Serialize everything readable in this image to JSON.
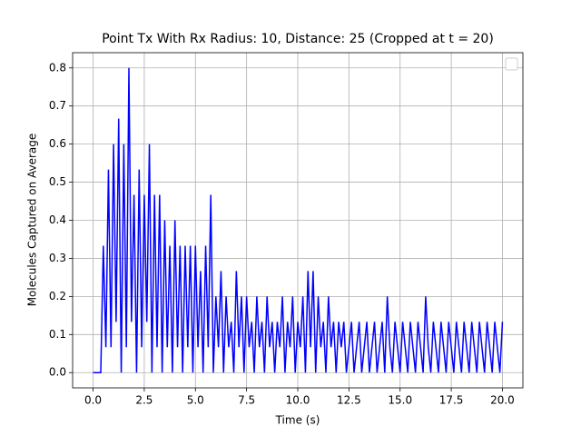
{
  "chart_data": {
    "type": "line",
    "title": "Point Tx With Rx Radius: 10, Distance: 25 (Cropped at t = 20)",
    "x_label": "Time (s)",
    "y_label": "Molecules Captured on Average",
    "x": [
      0,
      0.125,
      0.25,
      0.375,
      0.5,
      0.625,
      0.75,
      0.875,
      1.0,
      1.125,
      1.25,
      1.375,
      1.5,
      1.625,
      1.75,
      1.875,
      2.0,
      2.125,
      2.25,
      2.375,
      2.5,
      2.625,
      2.75,
      2.875,
      3.0,
      3.125,
      3.25,
      3.375,
      3.5,
      3.625,
      3.75,
      3.875,
      4.0,
      4.125,
      4.25,
      4.375,
      4.5,
      4.625,
      4.75,
      4.875,
      5.0,
      5.125,
      5.25,
      5.375,
      5.5,
      5.625,
      5.75,
      5.875,
      6.0,
      6.125,
      6.25,
      6.375,
      6.5,
      6.625,
      6.75,
      6.875,
      7.0,
      7.125,
      7.25,
      7.375,
      7.5,
      7.625,
      7.75,
      7.875,
      8.0,
      8.125,
      8.25,
      8.375,
      8.5,
      8.625,
      8.75,
      8.875,
      9.0,
      9.125,
      9.25,
      9.375,
      9.5,
      9.625,
      9.75,
      9.875,
      10.0,
      10.125,
      10.25,
      10.375,
      10.5,
      10.625,
      10.75,
      10.875,
      11.0,
      11.125,
      11.25,
      11.375,
      11.5,
      11.625,
      11.75,
      11.875,
      12.0,
      12.125,
      12.25,
      12.375,
      12.5,
      12.625,
      12.75,
      12.875,
      13.0,
      13.125,
      13.25,
      13.375,
      13.5,
      13.625,
      13.75,
      13.875,
      14.0,
      14.125,
      14.25,
      14.375,
      14.5,
      14.625,
      14.75,
      14.875,
      15.0,
      15.125,
      15.25,
      15.375,
      15.5,
      15.625,
      15.75,
      15.875,
      16.0,
      16.125,
      16.25,
      16.375,
      16.5,
      16.625,
      16.75,
      16.875,
      17.0,
      17.125,
      17.25,
      17.375,
      17.5,
      17.625,
      17.75,
      17.875,
      18.0,
      18.125,
      18.25,
      18.375,
      18.5,
      18.625,
      18.75,
      18.875,
      19.0,
      19.125,
      19.25,
      19.375,
      19.5,
      19.625,
      19.75,
      19.875,
      20.0
    ],
    "series": [
      {
        "color": "#0000ff",
        "values": [
          0,
          0,
          0,
          0,
          0.3333,
          0.0667,
          0.5333,
          0.0667,
          0.6,
          0.1333,
          0.6667,
          0,
          0.6,
          0.0667,
          0.8,
          0.1333,
          0.4667,
          0,
          0.5333,
          0.0667,
          0.4667,
          0.1333,
          0.6,
          0,
          0.4667,
          0.0667,
          0.4667,
          0,
          0.4,
          0.0667,
          0.3333,
          0,
          0.4,
          0.0667,
          0.3333,
          0,
          0.3333,
          0.0667,
          0.3333,
          0,
          0.3333,
          0.0667,
          0.2667,
          0,
          0.3333,
          0.0667,
          0.4667,
          0,
          0.2,
          0.0667,
          0.2667,
          0,
          0.2,
          0.0667,
          0.1333,
          0,
          0.2667,
          0.0667,
          0.2,
          0,
          0.2,
          0.0667,
          0.1333,
          0,
          0.2,
          0.0667,
          0.1333,
          0,
          0.2,
          0.0667,
          0.1333,
          0,
          0.1333,
          0.0667,
          0.2,
          0,
          0.1333,
          0.0667,
          0.2,
          0,
          0.1333,
          0.0667,
          0.2,
          0,
          0.2667,
          0.0667,
          0.2667,
          0,
          0.2,
          0.0667,
          0.1333,
          0,
          0.2,
          0.0667,
          0.1333,
          0,
          0.1333,
          0.0667,
          0.1333,
          0,
          0.0667,
          0.1333,
          0,
          0.0667,
          0.1333,
          0,
          0.0667,
          0.1333,
          0,
          0.0667,
          0.1333,
          0,
          0.0667,
          0.1333,
          0,
          0.2,
          0.0667,
          0,
          0.1333,
          0.0667,
          0,
          0.1333,
          0.0667,
          0,
          0.1333,
          0.0667,
          0,
          0.1333,
          0.0667,
          0,
          0.2,
          0.0667,
          0,
          0.1333,
          0.0667,
          0,
          0.1333,
          0.0667,
          0,
          0.1333,
          0.0667,
          0,
          0.1333,
          0.0667,
          0,
          0.1333,
          0.0667,
          0,
          0.1333,
          0.0667,
          0,
          0.1333,
          0.0667,
          0,
          0.1333,
          0.0667,
          0,
          0.1333,
          0.0667,
          0,
          0.1333
        ]
      }
    ],
    "xlim": [
      -1.0,
      21.0
    ],
    "ylim": [
      -0.04,
      0.84
    ],
    "xticks": [
      {
        "value": 0,
        "label": "0.0"
      },
      2.5,
      {
        "value": 5,
        "label": "5.0"
      },
      7.5,
      {
        "value": 10,
        "label": "10.0"
      },
      12.5,
      {
        "value": 15,
        "label": "15.0"
      },
      17.5,
      {
        "value": 20,
        "label": "20.0"
      }
    ],
    "yticks": [
      {
        "value": 0,
        "label": "0.0"
      },
      0.1,
      0.2,
      0.3,
      0.4,
      0.5,
      0.6,
      0.7,
      0.8
    ],
    "grid": true
  }
}
